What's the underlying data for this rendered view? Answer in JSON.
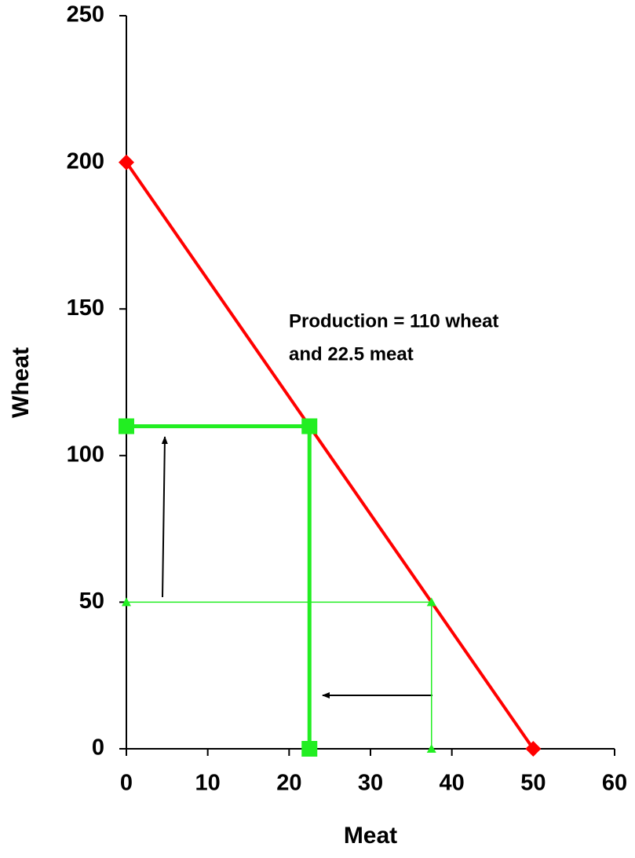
{
  "chart_data": {
    "type": "line",
    "x_label": "Meat",
    "y_label": "Wheat",
    "xlim": [
      0,
      60
    ],
    "xticks": [
      0,
      10,
      20,
      30,
      40,
      50,
      60
    ],
    "ylim": [
      0,
      250
    ],
    "yticks": [
      0,
      50,
      100,
      150,
      200,
      250
    ],
    "grid": false,
    "annotation": [
      "Production = 110 wheat",
      "and 22.5 meat"
    ],
    "series": [
      {
        "color": "#ff0000",
        "width": 4,
        "marker": "diamond",
        "x": [
          0,
          50
        ],
        "values": [
          200,
          0
        ]
      },
      {
        "color": "#22ee22",
        "width": 5,
        "marker": "square",
        "x": [
          0,
          22.5,
          22.5
        ],
        "values": [
          110,
          110,
          0
        ]
      },
      {
        "color": "#22ee22",
        "width": 1.5,
        "marker": "triangle",
        "x": [
          0,
          37.5,
          37.5
        ],
        "values": [
          50,
          50,
          0
        ]
      }
    ]
  }
}
